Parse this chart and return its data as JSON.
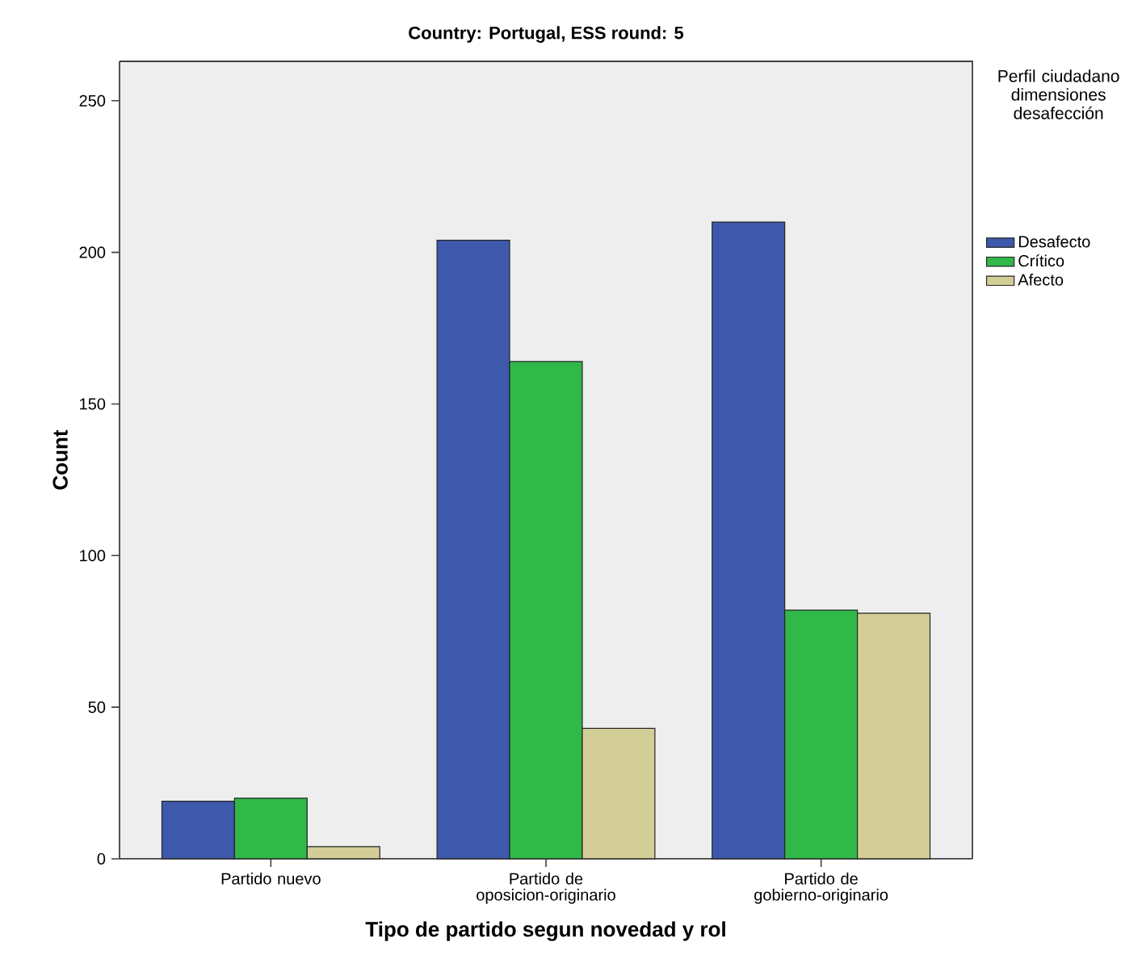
{
  "chart_data": {
    "type": "bar",
    "title": "Country: Portugal, ESS round: 5",
    "xlabel": "Tipo de partido segun novedad y rol",
    "ylabel": "Count",
    "legend_title": "Perfil ciudadano dimensiones desafección",
    "categories": [
      "Partido nuevo",
      "Partido de oposicion-originario",
      "Partido de gobierno-originario"
    ],
    "series": [
      {
        "name": "Desafecto",
        "color": "#3e58ac",
        "values": [
          19,
          204,
          210
        ]
      },
      {
        "name": "Crítico",
        "color": "#30b849",
        "values": [
          20,
          164,
          82
        ]
      },
      {
        "name": "Afecto",
        "color": "#d3ce97",
        "values": [
          4,
          43,
          81
        ]
      }
    ],
    "ylim": [
      0,
      263
    ],
    "yticks": [
      0,
      50,
      100,
      150,
      200,
      250
    ],
    "legend": "right",
    "grid": false
  }
}
